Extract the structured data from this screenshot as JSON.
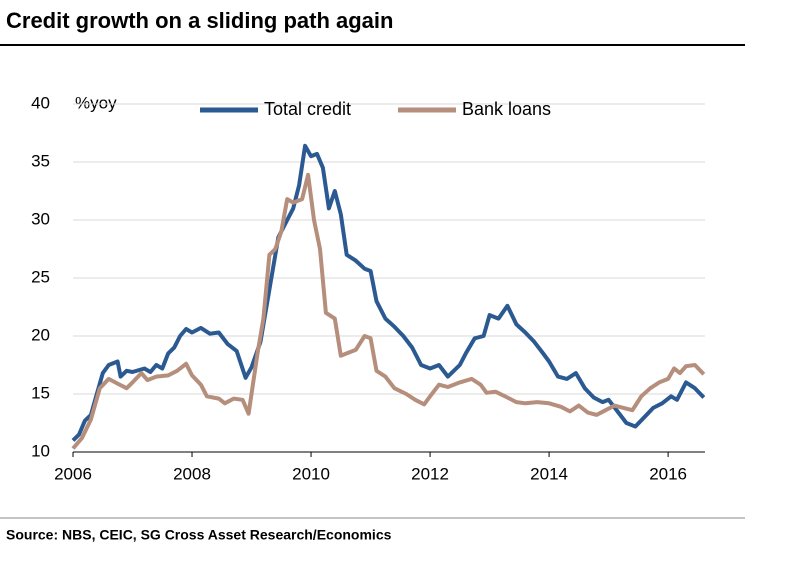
{
  "chart_data": {
    "type": "line",
    "title": "Credit growth on a sliding path again",
    "y_label": "%yoy",
    "source": "Source: NBS, CEIC, SG Cross Asset Research/Economics",
    "xlim": [
      2006,
      2016.62
    ],
    "xticks": [
      2006,
      2008,
      2010,
      2012,
      2014,
      2016
    ],
    "ylim": [
      10,
      40
    ],
    "yticks": [
      10,
      15,
      20,
      25,
      30,
      35,
      40
    ],
    "grid": true,
    "legend": "top",
    "series": [
      {
        "name": "Total credit",
        "color": "#2b5a92",
        "x": [
          2006.0,
          2006.1,
          2006.2,
          2006.3,
          2006.4,
          2006.5,
          2006.6,
          2006.75,
          2006.8,
          2006.9,
          2007.0,
          2007.2,
          2007.3,
          2007.4,
          2007.5,
          2007.6,
          2007.7,
          2007.8,
          2007.9,
          2008.0,
          2008.15,
          2008.3,
          2008.45,
          2008.6,
          2008.75,
          2008.9,
          2009.0,
          2009.15,
          2009.3,
          2009.45,
          2009.6,
          2009.7,
          2009.8,
          2009.9,
          2010.0,
          2010.1,
          2010.2,
          2010.3,
          2010.4,
          2010.5,
          2010.6,
          2010.75,
          2010.9,
          2011.0,
          2011.1,
          2011.25,
          2011.4,
          2011.55,
          2011.7,
          2011.85,
          2012.0,
          2012.15,
          2012.3,
          2012.5,
          2012.6,
          2012.75,
          2012.9,
          2013.0,
          2013.15,
          2013.3,
          2013.45,
          2013.6,
          2013.75,
          2013.9,
          2014.0,
          2014.15,
          2014.3,
          2014.45,
          2014.6,
          2014.75,
          2014.9,
          2015.0,
          2015.15,
          2015.3,
          2015.45,
          2015.6,
          2015.75,
          2015.9,
          2016.05,
          2016.15,
          2016.3,
          2016.45,
          2016.6
        ],
        "values": [
          11.0,
          11.5,
          12.7,
          13.2,
          15.0,
          16.8,
          17.5,
          17.8,
          16.5,
          17.0,
          16.9,
          17.2,
          16.9,
          17.5,
          17.2,
          18.5,
          19.0,
          20.0,
          20.6,
          20.3,
          20.7,
          20.2,
          20.3,
          19.3,
          18.7,
          16.4,
          17.3,
          19.5,
          24.0,
          28.5,
          30.0,
          31.0,
          33.0,
          36.4,
          35.5,
          35.7,
          34.5,
          31.0,
          32.5,
          30.5,
          27.0,
          26.5,
          25.8,
          25.6,
          23.0,
          21.5,
          20.8,
          20.0,
          19.0,
          17.5,
          17.2,
          17.5,
          16.5,
          17.5,
          18.5,
          19.8,
          20.0,
          21.8,
          21.5,
          22.6,
          21.0,
          20.3,
          19.5,
          18.5,
          17.8,
          16.5,
          16.3,
          16.8,
          15.5,
          14.7,
          14.3,
          14.5,
          13.5,
          12.5,
          12.2,
          13.0,
          13.8,
          14.2,
          14.8,
          14.5,
          16.0,
          15.5,
          14.7
        ]
      },
      {
        "name": "Bank loans",
        "color": "#b58e7c",
        "x": [
          2006.0,
          2006.15,
          2006.3,
          2006.45,
          2006.6,
          2006.75,
          2006.9,
          2007.0,
          2007.15,
          2007.25,
          2007.4,
          2007.6,
          2007.75,
          2007.9,
          2008.0,
          2008.15,
          2008.25,
          2008.45,
          2008.55,
          2008.7,
          2008.85,
          2008.95,
          2009.1,
          2009.2,
          2009.3,
          2009.4,
          2009.5,
          2009.6,
          2009.7,
          2009.85,
          2009.95,
          2010.05,
          2010.15,
          2010.25,
          2010.4,
          2010.5,
          2010.6,
          2010.75,
          2010.9,
          2011.0,
          2011.1,
          2011.25,
          2011.4,
          2011.6,
          2011.75,
          2011.9,
          2012.0,
          2012.15,
          2012.3,
          2012.5,
          2012.7,
          2012.85,
          2012.95,
          2013.1,
          2013.3,
          2013.45,
          2013.6,
          2013.8,
          2014.0,
          2014.2,
          2014.35,
          2014.5,
          2014.65,
          2014.8,
          2014.95,
          2015.1,
          2015.25,
          2015.4,
          2015.55,
          2015.7,
          2015.85,
          2016.0,
          2016.1,
          2016.2,
          2016.3,
          2016.45,
          2016.6
        ],
        "values": [
          10.3,
          11.2,
          12.8,
          15.5,
          16.3,
          15.9,
          15.5,
          16.0,
          16.8,
          16.2,
          16.5,
          16.6,
          17.0,
          17.6,
          16.6,
          15.8,
          14.8,
          14.6,
          14.2,
          14.6,
          14.5,
          13.3,
          18.5,
          21.5,
          27.0,
          27.5,
          29.0,
          31.8,
          31.5,
          31.8,
          33.9,
          30.0,
          27.5,
          22.0,
          21.5,
          18.3,
          18.5,
          18.8,
          20.0,
          19.8,
          17.0,
          16.5,
          15.5,
          15.0,
          14.5,
          14.1,
          14.8,
          15.8,
          15.6,
          16.0,
          16.3,
          15.8,
          15.1,
          15.2,
          14.7,
          14.3,
          14.2,
          14.3,
          14.2,
          13.9,
          13.5,
          14.0,
          13.4,
          13.2,
          13.6,
          14.0,
          13.8,
          13.6,
          14.8,
          15.5,
          16.0,
          16.3,
          17.2,
          16.8,
          17.4,
          17.5,
          16.7
        ]
      }
    ]
  }
}
